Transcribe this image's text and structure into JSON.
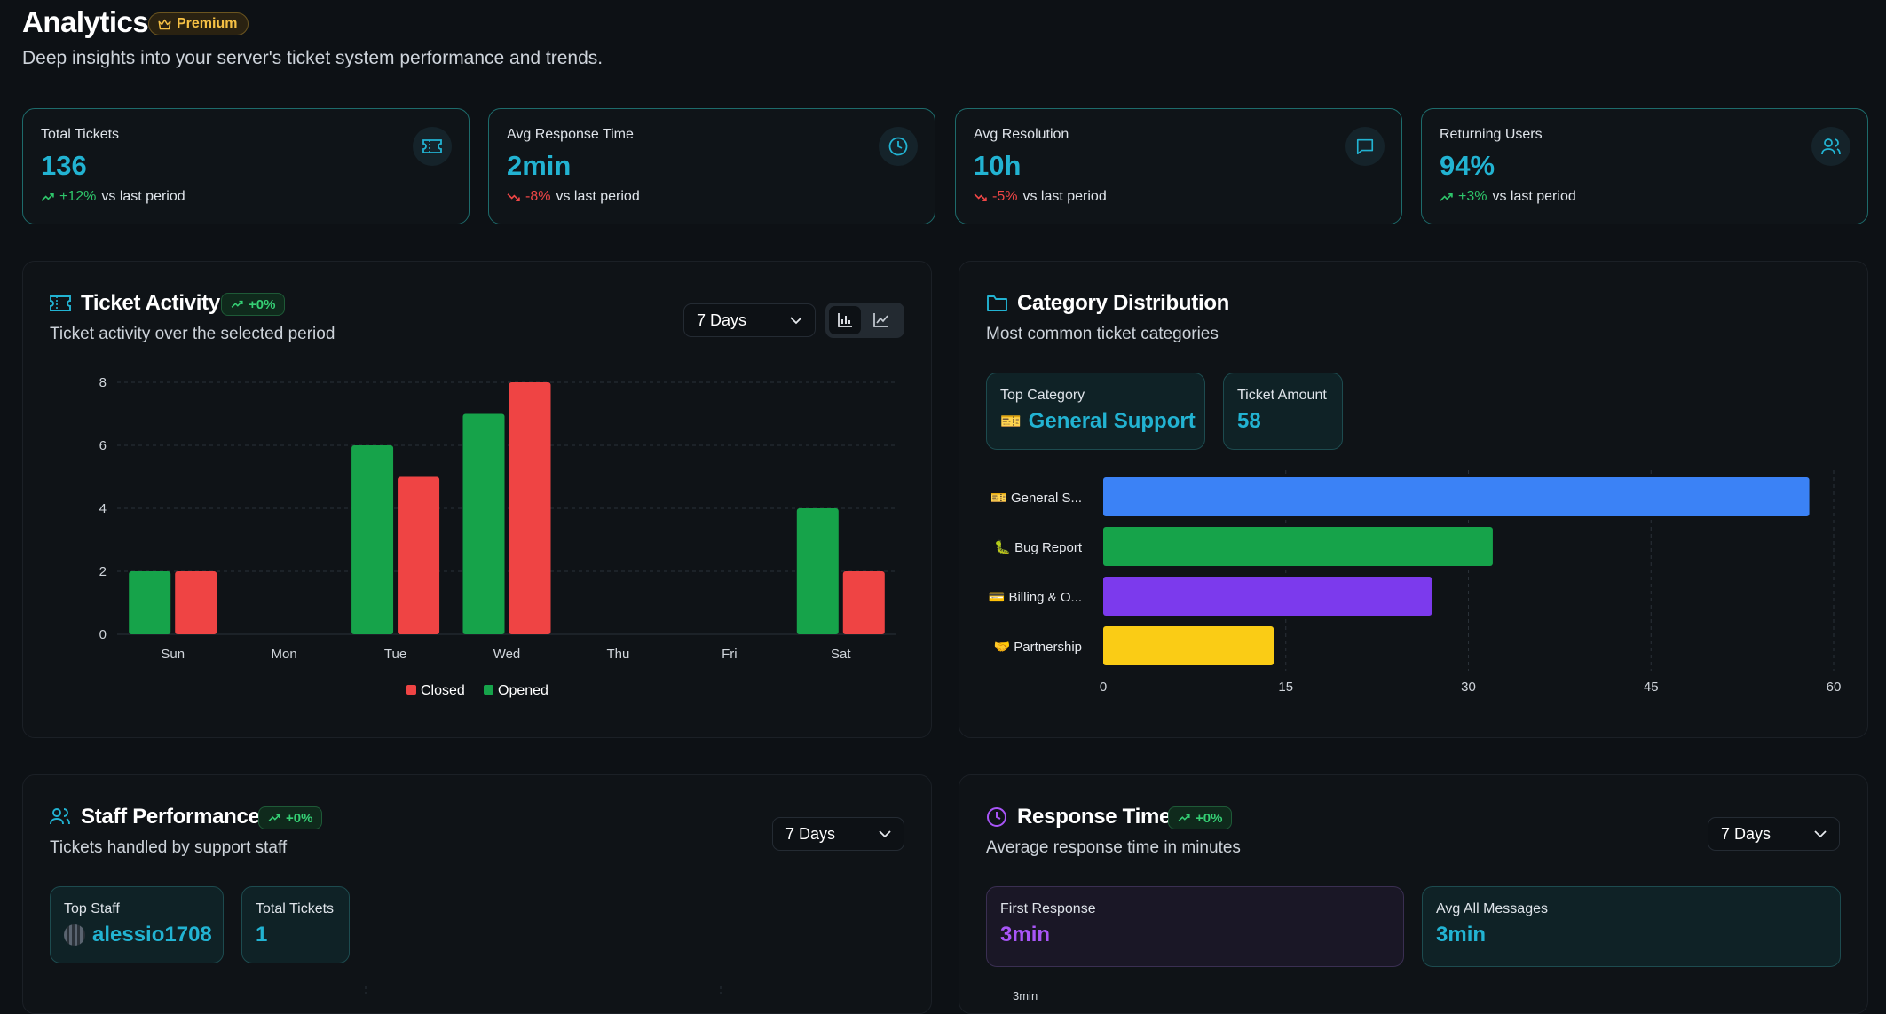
{
  "header": {
    "title": "Analytics",
    "premium_label": "Premium",
    "subtitle": "Deep insights into your server's ticket system performance and trends."
  },
  "colors": {
    "accent": "#22b3d2",
    "green": "#16a34a",
    "red": "#ef4444",
    "blue": "#3b82f6",
    "purple": "#7c3aed",
    "yellow": "#facc15"
  },
  "stats": [
    {
      "label": "Total Tickets",
      "value": "136",
      "change": "+12%",
      "direction": "up",
      "suffix": "vs last period",
      "icon": "ticket-icon"
    },
    {
      "label": "Avg Response Time",
      "value": "2min",
      "change": "-8%",
      "direction": "down",
      "suffix": "vs last period",
      "icon": "clock-icon"
    },
    {
      "label": "Avg Resolution",
      "value": "10h",
      "change": "-5%",
      "direction": "down",
      "suffix": "vs last period",
      "icon": "message-icon"
    },
    {
      "label": "Returning Users",
      "value": "94%",
      "change": "+3%",
      "direction": "up",
      "suffix": "vs last period",
      "icon": "users-icon"
    }
  ],
  "ticket_activity": {
    "title": "Ticket Activity",
    "badge": "+0%",
    "subtitle": "Ticket activity over the selected period",
    "range": "7 Days"
  },
  "category_distribution": {
    "title": "Category Distribution",
    "subtitle": "Most common ticket categories",
    "top_category_label": "Top Category",
    "top_category_value": "General Support",
    "ticket_amount_label": "Ticket Amount",
    "ticket_amount_value": "58"
  },
  "staff_performance": {
    "title": "Staff Performance",
    "badge": "+0%",
    "subtitle": "Tickets handled by support staff",
    "range": "7 Days",
    "top_staff_label": "Top Staff",
    "top_staff_value": "alessio1708",
    "total_tickets_label": "Total Tickets",
    "total_tickets_value": "1"
  },
  "response_time": {
    "title": "Response Time",
    "badge": "+0%",
    "subtitle": "Average response time in minutes",
    "range": "7 Days",
    "first_response_label": "First Response",
    "first_response_value": "3min",
    "avg_all_label": "Avg All Messages",
    "avg_all_value": "3min",
    "peek_label": "3min"
  },
  "chart_data": [
    {
      "type": "bar",
      "categories": [
        "Sun",
        "Mon",
        "Tue",
        "Wed",
        "Thu",
        "Fri",
        "Sat"
      ],
      "series": [
        {
          "name": "Opened",
          "values": [
            2,
            0,
            6,
            7,
            0,
            0,
            4
          ],
          "color": "#16a34a"
        },
        {
          "name": "Closed",
          "values": [
            2,
            0,
            5,
            8,
            0,
            0,
            2
          ],
          "color": "#ef4444"
        }
      ],
      "legend_order": [
        "Closed",
        "Opened"
      ],
      "yticks": [
        0,
        2,
        4,
        6,
        8
      ],
      "ylim": [
        0,
        8
      ],
      "legend": "bottom-center",
      "grid": true
    },
    {
      "type": "bar",
      "orientation": "horizontal",
      "categories": [
        "General S...",
        "Bug Report",
        "Billing & O...",
        "Partnership"
      ],
      "emoji": [
        "🎫",
        "🐛",
        "💳",
        "🤝"
      ],
      "values": [
        58,
        32,
        27,
        14
      ],
      "colors": [
        "#3b82f6",
        "#16a34a",
        "#7c3aed",
        "#facc15"
      ],
      "xticks": [
        0,
        15,
        30,
        45,
        60
      ],
      "xlim": [
        0,
        60
      ],
      "grid": true
    }
  ]
}
